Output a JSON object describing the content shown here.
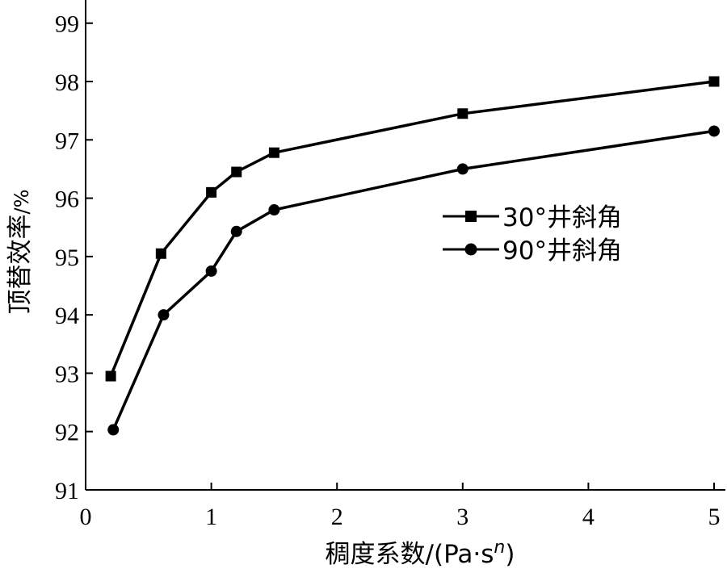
{
  "chart_data": {
    "type": "line",
    "x_title": {
      "main": "稠度系数/(Pa·s",
      "sup": "n",
      "tail": ")"
    },
    "y_title": {
      "main": "顶替效率",
      "unit": "/%"
    },
    "x_ticks": [
      "0",
      "1",
      "2",
      "3",
      "4",
      "5"
    ],
    "y_ticks": [
      "91",
      "92",
      "93",
      "94",
      "95",
      "96",
      "97",
      "98",
      "99"
    ],
    "xlim": [
      0,
      5
    ],
    "ylim": [
      91,
      99.5
    ],
    "grid": false,
    "legend_position": "right-middle",
    "series": [
      {
        "name": "30°井斜角",
        "marker": "square",
        "x": [
          0.2,
          0.6,
          1.0,
          1.2,
          1.5,
          3.0,
          5.0
        ],
        "y": [
          92.95,
          95.05,
          96.1,
          96.45,
          96.78,
          97.45,
          98.0
        ]
      },
      {
        "name": "90°井斜角",
        "marker": "circle",
        "x": [
          0.22,
          0.62,
          1.0,
          1.2,
          1.5,
          3.0,
          5.0
        ],
        "y": [
          92.03,
          94.0,
          94.75,
          95.43,
          95.8,
          96.5,
          97.15
        ]
      }
    ],
    "colors": {
      "line": "#000000",
      "axis": "#000000"
    }
  }
}
